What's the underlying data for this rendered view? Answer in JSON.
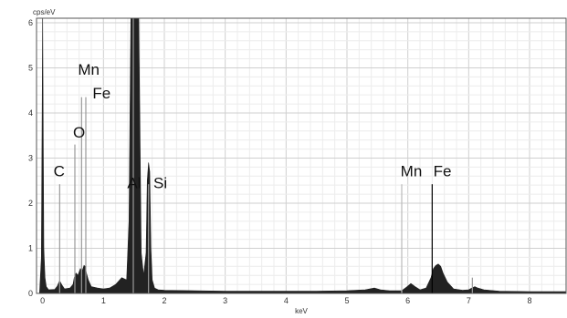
{
  "chart_data": {
    "type": "area",
    "xlabel": "keV",
    "ylabel": "cps/eV",
    "xlim": [
      -0.1,
      8.6
    ],
    "ylim": [
      0,
      6.1
    ],
    "x_ticks": [
      "0",
      "1",
      "2",
      "3",
      "4",
      "5",
      "6",
      "7",
      "8"
    ],
    "y_ticks": [
      "0",
      "1",
      "2",
      "3",
      "4",
      "5",
      "6"
    ],
    "grid": true,
    "color": "#222222",
    "spectrum": {
      "x": [
        -0.05,
        -0.02,
        0.0,
        0.02,
        0.04,
        0.06,
        0.1,
        0.2,
        0.24,
        0.28,
        0.32,
        0.36,
        0.45,
        0.5,
        0.52,
        0.55,
        0.58,
        0.62,
        0.65,
        0.68,
        0.7,
        0.72,
        0.75,
        0.8,
        0.9,
        1.0,
        1.1,
        1.2,
        1.3,
        1.38,
        1.42,
        1.45,
        1.48,
        1.5,
        1.52,
        1.55,
        1.58,
        1.62,
        1.66,
        1.7,
        1.72,
        1.74,
        1.76,
        1.78,
        1.8,
        1.84,
        1.9,
        2.0,
        2.5,
        3.0,
        3.5,
        4.0,
        4.5,
        5.0,
        5.3,
        5.45,
        5.55,
        5.7,
        5.9,
        5.98,
        6.05,
        6.12,
        6.2,
        6.3,
        6.38,
        6.42,
        6.46,
        6.5,
        6.54,
        6.58,
        6.65,
        6.75,
        6.9,
        7.0,
        7.05,
        7.1,
        7.15,
        7.25,
        7.5,
        8.0,
        8.6
      ],
      "y": [
        0.0,
        0.8,
        6.1,
        1.0,
        0.35,
        0.15,
        0.08,
        0.09,
        0.16,
        0.28,
        0.18,
        0.1,
        0.12,
        0.2,
        0.35,
        0.45,
        0.4,
        0.55,
        0.5,
        0.62,
        0.6,
        0.45,
        0.3,
        0.15,
        0.12,
        0.1,
        0.12,
        0.2,
        0.35,
        0.3,
        1.6,
        6.1,
        6.1,
        6.1,
        6.1,
        6.1,
        6.1,
        0.9,
        0.4,
        0.9,
        2.5,
        2.9,
        2.7,
        1.0,
        0.3,
        0.12,
        0.08,
        0.07,
        0.06,
        0.05,
        0.05,
        0.05,
        0.05,
        0.06,
        0.08,
        0.12,
        0.08,
        0.06,
        0.06,
        0.14,
        0.22,
        0.15,
        0.08,
        0.12,
        0.35,
        0.55,
        0.62,
        0.65,
        0.6,
        0.45,
        0.25,
        0.1,
        0.07,
        0.08,
        0.12,
        0.15,
        0.12,
        0.08,
        0.05,
        0.04,
        0.04
      ]
    },
    "markers": [
      {
        "energy": 0.28,
        "height": 2.42,
        "color": "#999999"
      },
      {
        "energy": 0.53,
        "height": 3.3,
        "color": "#999999"
      },
      {
        "energy": 0.64,
        "height": 4.35,
        "color": "#999999"
      },
      {
        "energy": 0.71,
        "height": 4.35,
        "color": "#999999"
      },
      {
        "energy": 1.49,
        "height": 6.1,
        "color": "#999999"
      },
      {
        "energy": 1.74,
        "height": 2.42,
        "color": "#999999"
      },
      {
        "energy": 5.9,
        "height": 2.42,
        "color": "#bbbbbb"
      },
      {
        "energy": 6.4,
        "height": 2.42,
        "color": "#000000"
      },
      {
        "energy": 7.06,
        "height": 0.35,
        "color": "#999999"
      }
    ],
    "labels": [
      {
        "text": "C",
        "x": 0.18,
        "y": 2.6
      },
      {
        "text": "O",
        "x": 0.5,
        "y": 3.45
      },
      {
        "text": "Mn",
        "x": 0.58,
        "y": 4.85
      },
      {
        "text": "Fe",
        "x": 0.82,
        "y": 4.32
      },
      {
        "text": "Al",
        "x": 1.39,
        "y": 2.33
      },
      {
        "text": "Si",
        "x": 1.82,
        "y": 2.33
      },
      {
        "text": "Mn",
        "x": 5.88,
        "y": 2.6
      },
      {
        "text": "Fe",
        "x": 6.42,
        "y": 2.6
      }
    ]
  }
}
